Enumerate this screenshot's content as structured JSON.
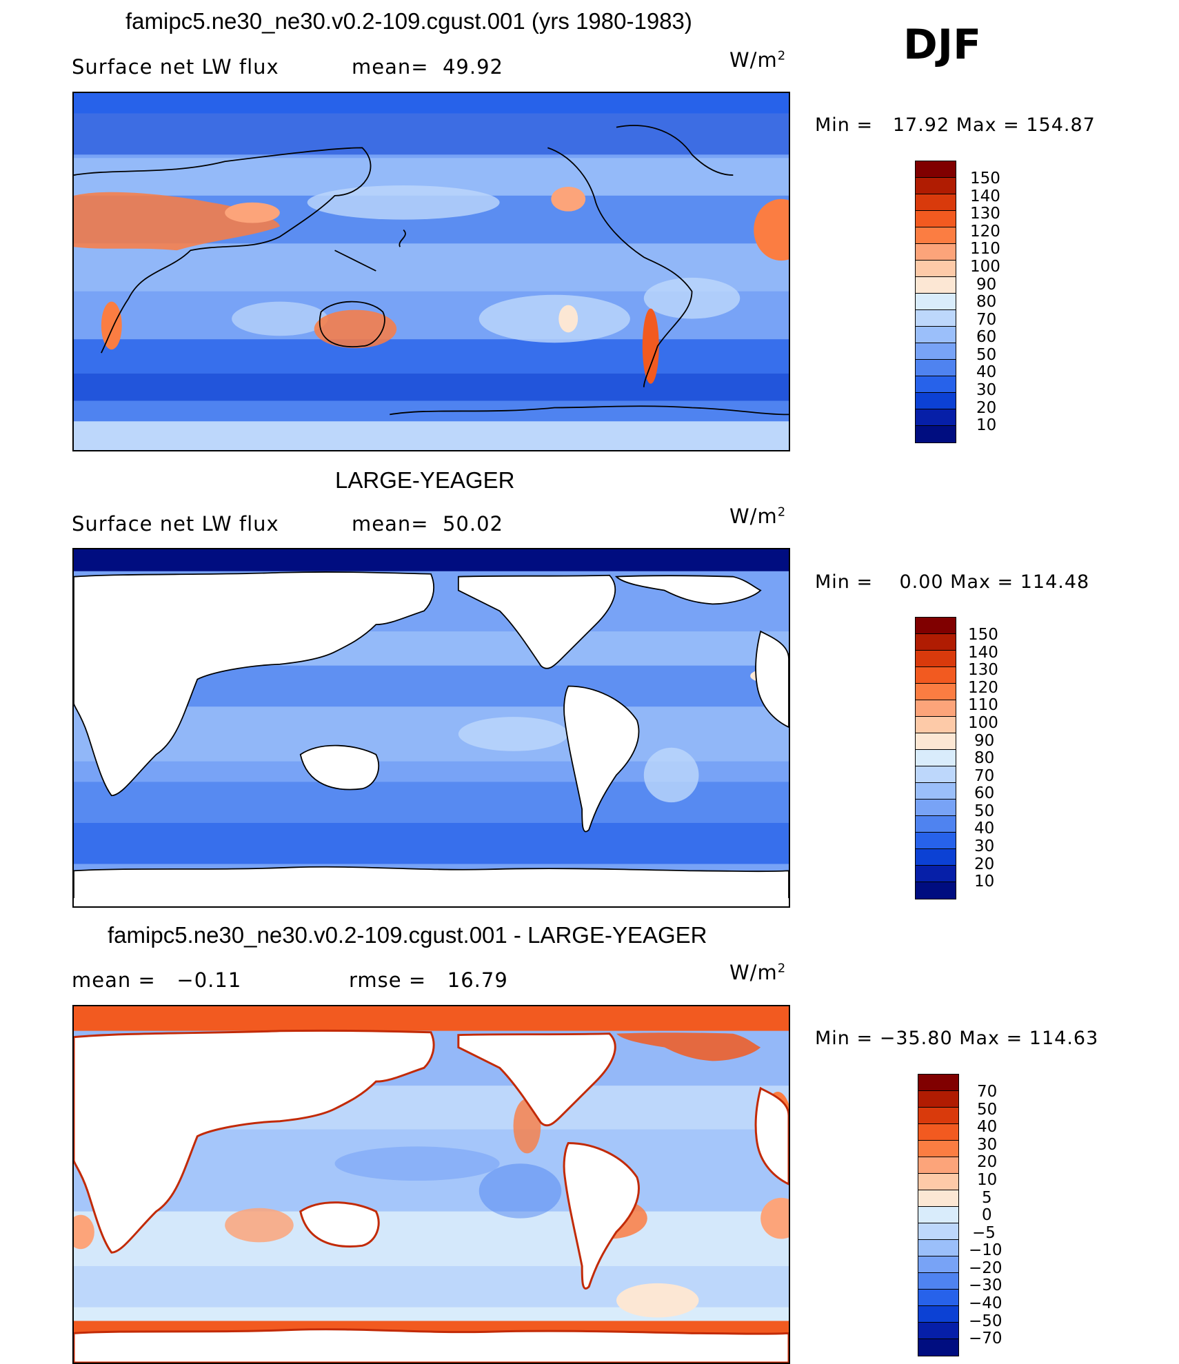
{
  "season": "DJF",
  "panels": [
    {
      "title": "famipc5.ne30_ne30.v0.2-109.cgust.001 (yrs 1980-1983)",
      "left_label": "Surface net LW flux",
      "mid_label": "mean=  49.92",
      "units": "W/m",
      "units_sup": "2",
      "minmax": "Min =   17.92 Max = 154.87",
      "field": "model",
      "colorbar": {
        "colors": [
          "#800000",
          "#b01c02",
          "#d93a0c",
          "#f25a20",
          "#fb7d42",
          "#fca47a",
          "#fdcaa8",
          "#fce7d4",
          "#d9ecfb",
          "#bdd7fb",
          "#9bbffa",
          "#78a3f6",
          "#4f83f0",
          "#2762ea",
          "#0c41d4",
          "#061fa8",
          "#000d80"
        ],
        "labels": [
          "150",
          "140",
          "130",
          "120",
          "110",
          "100",
          "90",
          "80",
          "70",
          "60",
          "50",
          "40",
          "30",
          "20",
          "10"
        ]
      }
    },
    {
      "title": "LARGE-YEAGER",
      "left_label": "Surface net LW flux",
      "mid_label": "mean=  50.02",
      "units": "W/m",
      "units_sup": "2",
      "minmax": "Min =    0.00 Max = 114.48",
      "field": "obs",
      "colorbar": {
        "colors": [
          "#800000",
          "#b01c02",
          "#d93a0c",
          "#f25a20",
          "#fb7d42",
          "#fca47a",
          "#fdcaa8",
          "#fce7d4",
          "#d9ecfb",
          "#bdd7fb",
          "#9bbffa",
          "#78a3f6",
          "#4f83f0",
          "#2762ea",
          "#0c41d4",
          "#061fa8",
          "#000d80"
        ],
        "labels": [
          "150",
          "140",
          "130",
          "120",
          "110",
          "100",
          "90",
          "80",
          "70",
          "60",
          "50",
          "40",
          "30",
          "20",
          "10"
        ]
      }
    },
    {
      "title": "famipc5.ne30_ne30.v0.2-109.cgust.001 - LARGE-YEAGER",
      "left_label": "mean =   −0.11",
      "mid_label": "rmse =   16.79",
      "units": "W/m",
      "units_sup": "2",
      "minmax": "Min = −35.80 Max = 114.63",
      "field": "diff",
      "colorbar": {
        "colors": [
          "#800000",
          "#b01c02",
          "#d93a0c",
          "#f25a20",
          "#fb7d42",
          "#fca47a",
          "#fdcaa8",
          "#fce7d4",
          "#d9ecfb",
          "#bdd7fb",
          "#9bbffa",
          "#78a3f6",
          "#4f83f0",
          "#2762ea",
          "#0c41d4",
          "#061fa8",
          "#000d80"
        ],
        "labels": [
          "70",
          "50",
          "40",
          "30",
          "20",
          "10",
          "5",
          "0",
          "−5",
          "−10",
          "−20",
          "−30",
          "−40",
          "−50",
          "−70"
        ]
      }
    }
  ]
}
